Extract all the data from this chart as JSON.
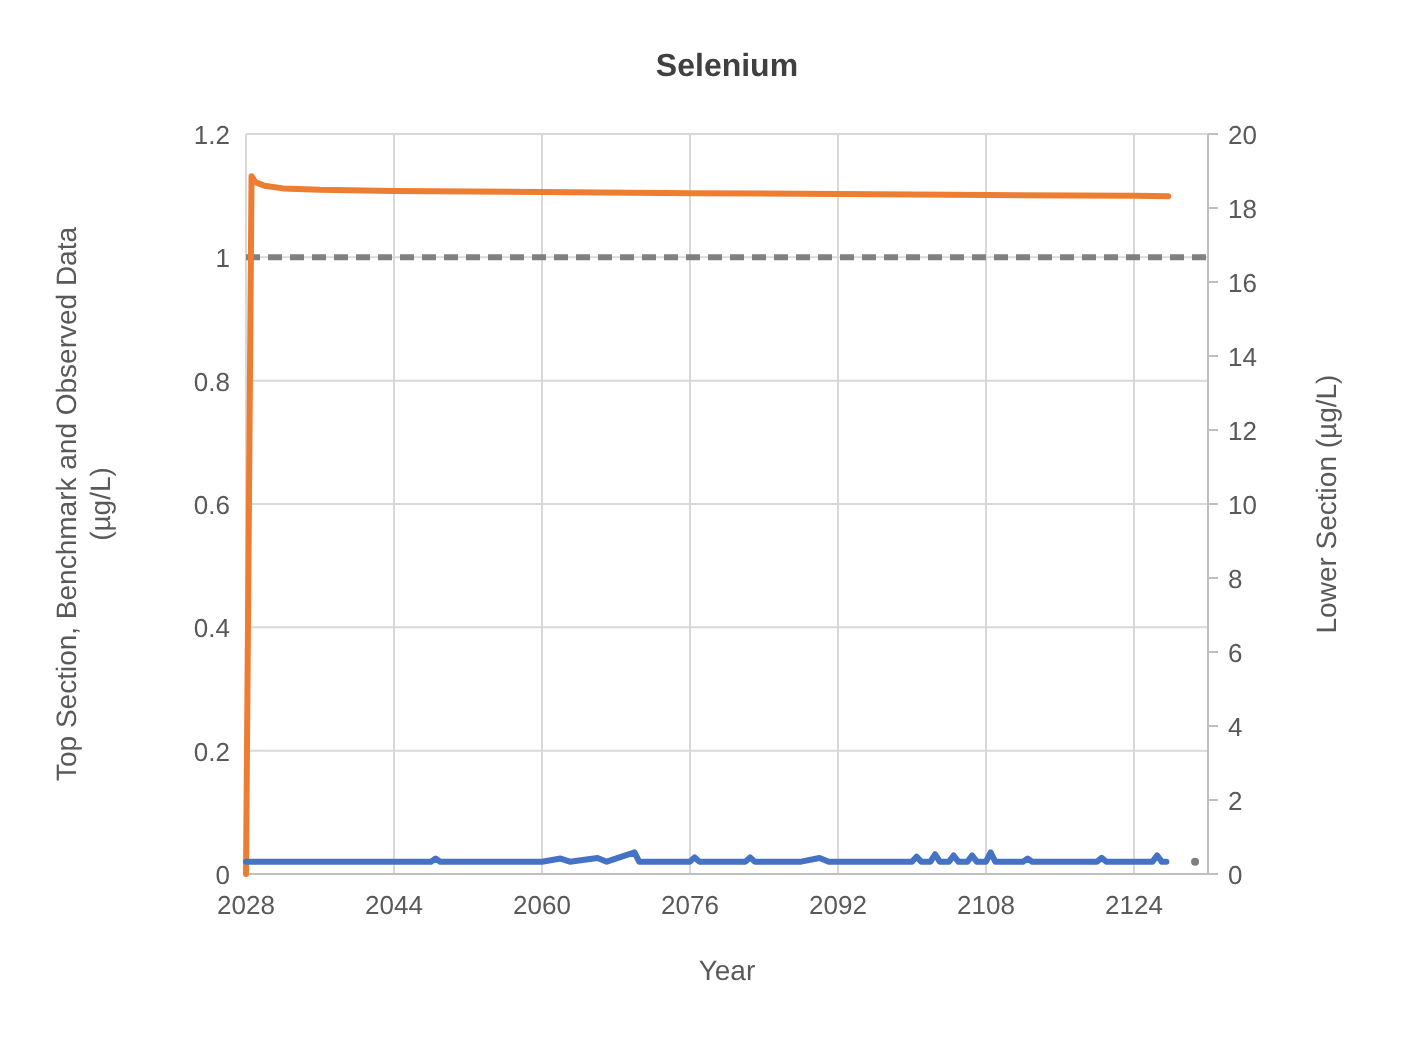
{
  "chart_data": {
    "type": "line",
    "title": "Selenium",
    "xlabel": "Year",
    "ylabel": "Top Section, Benchmark and Observed Data (µg/L)",
    "y2label": "Lower Section (µg/L)",
    "xlim": [
      2028,
      2132
    ],
    "xticks": [
      2028,
      2044,
      2060,
      2076,
      2092,
      2108,
      2124
    ],
    "ylim": [
      0,
      1.2
    ],
    "yticks": [
      0,
      0.2,
      0.4,
      0.6,
      0.8,
      1,
      1.2
    ],
    "y2lim": [
      0,
      20
    ],
    "y2ticks": [
      0,
      2,
      4,
      6,
      8,
      10,
      12,
      14,
      16,
      18,
      20
    ],
    "grid": true,
    "marker": "none",
    "line_style": "solid",
    "series": [
      {
        "axis": "y2",
        "color": "#ed7d31",
        "x": [
          2028,
          2028.6,
          2029,
          2030,
          2032,
          2036,
          2044,
          2060,
          2076,
          2092,
          2108,
          2124,
          2127.7
        ],
        "values": [
          0,
          18.86,
          18.7,
          18.6,
          18.53,
          18.49,
          18.46,
          18.43,
          18.4,
          18.38,
          18.35,
          18.33,
          18.32
        ]
      },
      {
        "color": "#4472c4",
        "x": [
          2028,
          2032,
          2036,
          2040,
          2044,
          2048,
          2048.5,
          2049,
          2054,
          2060,
          2062,
          2063,
          2066,
          2067,
          2070,
          2070.5,
          2071,
          2076,
          2076.5,
          2077,
          2082,
          2082.5,
          2083,
          2088,
          2090,
          2091,
          2096,
          2100,
          2100.5,
          2101,
          2102,
          2102.5,
          2103,
          2104,
          2104.5,
          2105,
          2106,
          2106.5,
          2107,
          2108,
          2108.5,
          2109,
          2112,
          2112.5,
          2113,
          2116,
          2120,
          2120.5,
          2121,
          2124,
          2126,
          2126.5,
          2127,
          2127.5
        ],
        "values": [
          0.02,
          0.02,
          0.02,
          0.02,
          0.02,
          0.02,
          0.025,
          0.02,
          0.02,
          0.02,
          0.025,
          0.02,
          0.026,
          0.02,
          0.035,
          0.02,
          0.02,
          0.02,
          0.027,
          0.02,
          0.02,
          0.027,
          0.02,
          0.02,
          0.026,
          0.02,
          0.02,
          0.02,
          0.028,
          0.02,
          0.02,
          0.032,
          0.02,
          0.02,
          0.03,
          0.02,
          0.02,
          0.03,
          0.02,
          0.02,
          0.035,
          0.02,
          0.02,
          0.025,
          0.02,
          0.02,
          0.02,
          0.026,
          0.02,
          0.02,
          0.02,
          0.03,
          0.02,
          0.02
        ]
      },
      {
        "type": "scatter",
        "color": "#7f7f7f",
        "marker": "circle",
        "x": [
          2130.6
        ],
        "values": [
          0.02
        ]
      }
    ],
    "ref_lines": [
      {
        "axis": "y",
        "value": 1,
        "color": "#808080",
        "line_style": "dashed"
      }
    ]
  }
}
